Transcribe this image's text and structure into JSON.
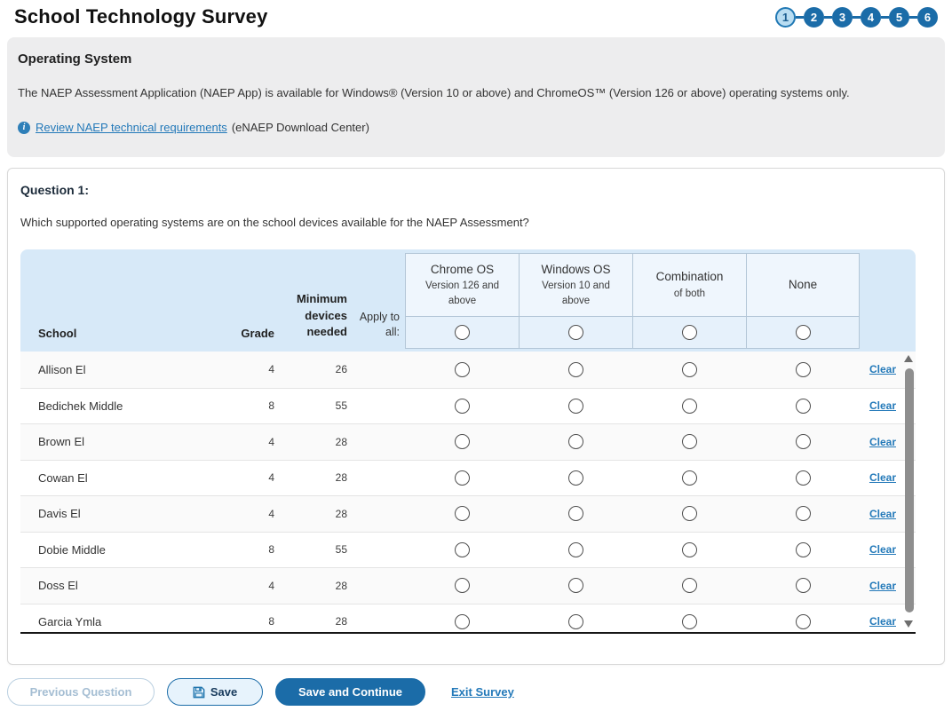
{
  "page": {
    "title": "School Technology Survey"
  },
  "stepper": {
    "steps": [
      "1",
      "2",
      "3",
      "4",
      "5",
      "6"
    ],
    "current_step": "1"
  },
  "info_box": {
    "heading": "Operating System",
    "body": "The NAEP Assessment Application (NAEP App) is available for Windows® (Version 10 or above) and ChromeOS™ (Version 126 or above) operating systems only.",
    "info_icon": "i",
    "link_text": "Review NAEP technical requirements",
    "link_suffix": "(eNAEP Download Center)"
  },
  "question": {
    "label": "Question 1:",
    "text": "Which supported operating systems are on the school devices available for the NAEP Assessment?"
  },
  "table": {
    "columns": {
      "school": "School",
      "grade": "Grade",
      "devices": "Minimum devices needed",
      "apply": "Apply to all:"
    },
    "options": [
      {
        "name": "Chrome OS",
        "sub": "Version 126 and above"
      },
      {
        "name": "Windows OS",
        "sub": "Version 10 and above"
      },
      {
        "name": "Combination",
        "sub": "of both"
      },
      {
        "name": "None",
        "sub": ""
      }
    ],
    "clear_label": "Clear",
    "rows": [
      {
        "school": "Allison El",
        "grade": "4",
        "devices": "26"
      },
      {
        "school": "Bedichek Middle",
        "grade": "8",
        "devices": "55"
      },
      {
        "school": "Brown El",
        "grade": "4",
        "devices": "28"
      },
      {
        "school": "Cowan El",
        "grade": "4",
        "devices": "28"
      },
      {
        "school": "Davis El",
        "grade": "4",
        "devices": "28"
      },
      {
        "school": "Dobie Middle",
        "grade": "8",
        "devices": "55"
      },
      {
        "school": "Doss El",
        "grade": "4",
        "devices": "28"
      },
      {
        "school": "Garcia Ymla",
        "grade": "8",
        "devices": "28"
      }
    ]
  },
  "footer": {
    "previous_label": "Previous Question",
    "save_label": "Save",
    "save_continue_label": "Save and Continue",
    "exit_label": "Exit Survey"
  },
  "colors": {
    "primary_blue": "#1b6ca8",
    "link_blue": "#2379b9",
    "table_header_bg": "#d7e9f8",
    "info_box_bg": "#ededee",
    "current_step_bg": "#b9ddf2"
  }
}
